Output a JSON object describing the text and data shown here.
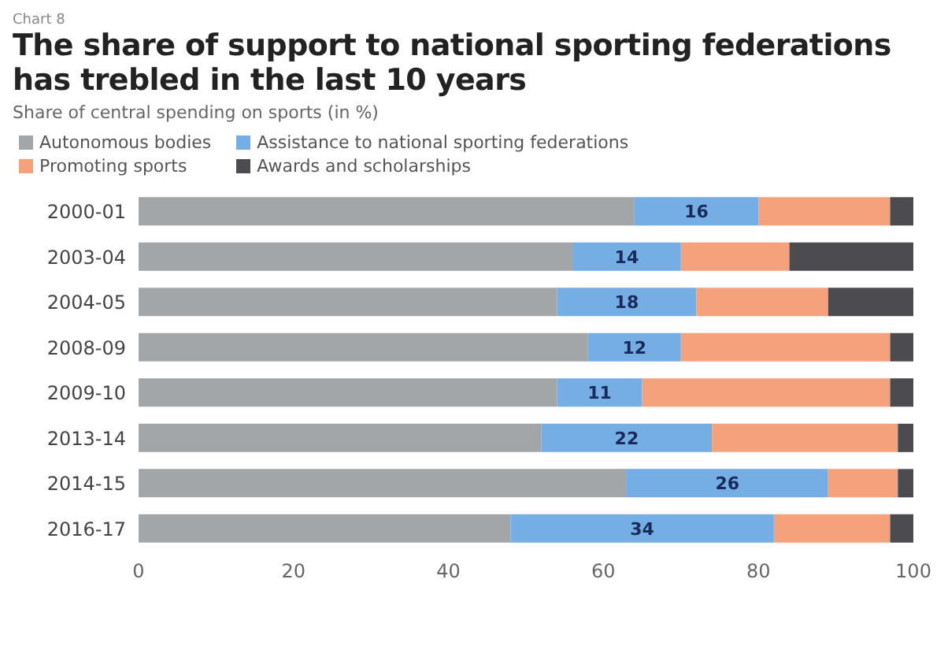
{
  "chart_data": {
    "type": "bar",
    "orientation": "horizontal",
    "stacked": true,
    "title": "The share of support to national sporting federations has trebled in the last 10 years",
    "subtitle": "Share of central spending on sports (in %)",
    "annotations": [
      "Chart 8"
    ],
    "categories": [
      "2000-01",
      "2003-04",
      "2004-05",
      "2008-09",
      "2009-10",
      "2013-14",
      "2014-15",
      "2016-17"
    ],
    "series": [
      {
        "name": "Autonomous bodies",
        "color": "#a3a6a9",
        "values": [
          64,
          56,
          54,
          58,
          54,
          52,
          63,
          48
        ]
      },
      {
        "name": "Assistance to national sporting federations",
        "color": "#74aee4",
        "values": [
          16,
          14,
          18,
          12,
          11,
          22,
          26,
          34
        ],
        "value_labels": [
          "16",
          "14",
          "18",
          "12",
          "11",
          "22",
          "26",
          "34"
        ]
      },
      {
        "name": "Promoting sports",
        "color": "#f5a27c",
        "values": [
          17,
          14,
          17,
          27,
          32,
          24,
          9,
          15
        ]
      },
      {
        "name": "Awards and scholarships",
        "color": "#4b4b50",
        "values": [
          3,
          16,
          11,
          3,
          3,
          2,
          2,
          3
        ]
      }
    ],
    "xlim": [
      0,
      100
    ],
    "xticks": [
      0,
      20,
      40,
      60,
      80,
      100
    ],
    "legend": "top left"
  }
}
